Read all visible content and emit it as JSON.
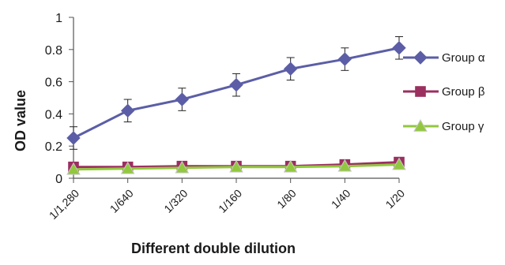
{
  "chart_data": {
    "type": "line",
    "xlabel": "Different double dilution",
    "ylabel": "OD value",
    "categories": [
      "1/1,280",
      "1/640",
      "1/320",
      "1/160",
      "1/80",
      "1/40",
      "1/20"
    ],
    "ylim": [
      0,
      1
    ],
    "yticks": [
      "0",
      "0.2",
      "0.4",
      "0.6",
      "0.8",
      "1"
    ],
    "grid": false,
    "legend_position": "right",
    "series": [
      {
        "name": "Group α",
        "color": "#5b5ea6",
        "marker": "diamond",
        "values": [
          0.25,
          0.42,
          0.49,
          0.58,
          0.68,
          0.74,
          0.81
        ],
        "errors": [
          0.07,
          0.07,
          0.07,
          0.07,
          0.07,
          0.07,
          0.07
        ]
      },
      {
        "name": "Group β",
        "color": "#9b2f5f",
        "marker": "square",
        "values": [
          0.07,
          0.07,
          0.075,
          0.075,
          0.075,
          0.085,
          0.1
        ]
      },
      {
        "name": "Group γ",
        "color": "#92c83e",
        "marker": "triangle",
        "values": [
          0.055,
          0.06,
          0.065,
          0.07,
          0.07,
          0.075,
          0.085
        ]
      }
    ]
  }
}
